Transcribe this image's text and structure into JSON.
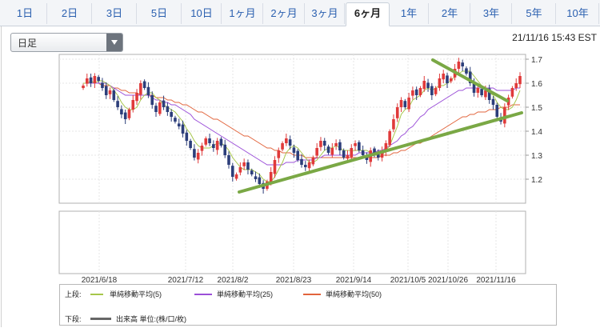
{
  "tabs": {
    "items": [
      "1日",
      "2日",
      "3日",
      "5日",
      "10日",
      "1ヶ月",
      "2ヶ月",
      "3ヶ月",
      "6ヶ月",
      "1年",
      "2年",
      "3年",
      "5年",
      "10年"
    ],
    "active_index": 8
  },
  "controls": {
    "period_select": "日足",
    "timestamp": "21/11/16 15:43 EST"
  },
  "chart_data": {
    "type": "candlestick",
    "x_tick_labels": [
      "2021/6/18",
      "2021/7/12",
      "2021/8/2",
      "2021/8/23",
      "2021/9/14",
      "2021/10/5",
      "2021/10/26",
      "2021/11/16"
    ],
    "y_tick_labels": [
      "1.7",
      "1.6",
      "1.5",
      "1.4",
      "1.3",
      "1.2"
    ],
    "ylim": [
      1.1,
      1.72
    ],
    "legend": {
      "upper_label": "上段:",
      "lower_label": "下段:",
      "ma5": "単純移動平均(5)",
      "ma25": "単純移動平均(25)",
      "ma50": "単純移動平均(50)",
      "volume": "出来高 単位:(株/口/枚)"
    },
    "colors": {
      "up": "#e03a3a",
      "down": "#2c3e7a",
      "ma5": "#a6c64a",
      "ma25": "#9b4fd8",
      "ma50": "#e2643c",
      "trend": "#7aa845"
    },
    "closes": [
      1.59,
      1.62,
      1.6,
      1.63,
      1.61,
      1.58,
      1.55,
      1.57,
      1.53,
      1.5,
      1.47,
      1.45,
      1.49,
      1.53,
      1.56,
      1.6,
      1.58,
      1.55,
      1.51,
      1.48,
      1.52,
      1.5,
      1.48,
      1.46,
      1.44,
      1.42,
      1.39,
      1.36,
      1.33,
      1.29,
      1.31,
      1.34,
      1.37,
      1.35,
      1.33,
      1.36,
      1.34,
      1.3,
      1.26,
      1.21,
      1.22,
      1.25,
      1.27,
      1.24,
      1.22,
      1.2,
      1.18,
      1.16,
      1.19,
      1.23,
      1.28,
      1.32,
      1.35,
      1.37,
      1.34,
      1.31,
      1.28,
      1.26,
      1.25,
      1.27,
      1.29,
      1.33,
      1.36,
      1.34,
      1.31,
      1.33,
      1.35,
      1.32,
      1.29,
      1.3,
      1.33,
      1.35,
      1.32,
      1.3,
      1.28,
      1.32,
      1.3,
      1.29,
      1.32,
      1.35,
      1.4,
      1.45,
      1.5,
      1.53,
      1.5,
      1.54,
      1.57,
      1.55,
      1.58,
      1.61,
      1.58,
      1.55,
      1.58,
      1.62,
      1.64,
      1.6,
      1.62,
      1.66,
      1.69,
      1.67,
      1.64,
      1.6,
      1.56,
      1.58,
      1.55,
      1.57,
      1.53,
      1.51,
      1.46,
      1.44,
      1.5,
      1.54,
      1.58,
      1.6,
      1.63
    ],
    "ma5": [
      1.6,
      1.6,
      1.61,
      1.6,
      1.61,
      1.61,
      1.6,
      1.59,
      1.57,
      1.55,
      1.52,
      1.5,
      1.49,
      1.49,
      1.5,
      1.53,
      1.55,
      1.56,
      1.56,
      1.54,
      1.53,
      1.51,
      1.5,
      1.49,
      1.48,
      1.46,
      1.44,
      1.41,
      1.39,
      1.36,
      1.34,
      1.33,
      1.33,
      1.33,
      1.34,
      1.35,
      1.35,
      1.34,
      1.32,
      1.29,
      1.27,
      1.25,
      1.24,
      1.24,
      1.24,
      1.23,
      1.22,
      1.2,
      1.19,
      1.19,
      1.21,
      1.24,
      1.27,
      1.31,
      1.33,
      1.34,
      1.33,
      1.31,
      1.29,
      1.27,
      1.27,
      1.28,
      1.3,
      1.32,
      1.33,
      1.33,
      1.34,
      1.33,
      1.32,
      1.32,
      1.32,
      1.32,
      1.32,
      1.32,
      1.32,
      1.31,
      1.3,
      1.3,
      1.3,
      1.32,
      1.34,
      1.38,
      1.42,
      1.47,
      1.49,
      1.5,
      1.53,
      1.54,
      1.55,
      1.57,
      1.58,
      1.57,
      1.58,
      1.59,
      1.59,
      1.6,
      1.61,
      1.63,
      1.64,
      1.65,
      1.65,
      1.65,
      1.63,
      1.61,
      1.59,
      1.57,
      1.56,
      1.55,
      1.52,
      1.5,
      1.49,
      1.49,
      1.5,
      1.53,
      1.57
    ],
    "ma25": [
      1.6,
      1.6,
      1.6,
      1.6,
      1.6,
      1.6,
      1.6,
      1.59,
      1.58,
      1.57,
      1.56,
      1.55,
      1.55,
      1.55,
      1.55,
      1.55,
      1.55,
      1.55,
      1.54,
      1.53,
      1.53,
      1.52,
      1.52,
      1.51,
      1.51,
      1.5,
      1.49,
      1.48,
      1.47,
      1.45,
      1.44,
      1.43,
      1.42,
      1.41,
      1.4,
      1.39,
      1.38,
      1.37,
      1.36,
      1.35,
      1.34,
      1.33,
      1.32,
      1.31,
      1.3,
      1.29,
      1.28,
      1.27,
      1.26,
      1.26,
      1.26,
      1.26,
      1.26,
      1.27,
      1.27,
      1.27,
      1.28,
      1.28,
      1.28,
      1.28,
      1.28,
      1.29,
      1.29,
      1.3,
      1.3,
      1.3,
      1.3,
      1.3,
      1.3,
      1.3,
      1.3,
      1.3,
      1.31,
      1.31,
      1.31,
      1.31,
      1.31,
      1.32,
      1.32,
      1.33,
      1.34,
      1.35,
      1.36,
      1.38,
      1.39,
      1.41,
      1.42,
      1.44,
      1.46,
      1.47,
      1.49,
      1.5,
      1.51,
      1.52,
      1.53,
      1.54,
      1.55,
      1.56,
      1.57,
      1.57,
      1.58,
      1.58,
      1.58,
      1.58,
      1.58,
      1.58,
      1.58,
      1.58,
      1.57,
      1.57,
      1.57,
      1.57,
      1.57,
      1.58,
      1.58
    ],
    "ma50": [
      1.6,
      1.6,
      1.6,
      1.6,
      1.6,
      1.59,
      1.59,
      1.59,
      1.58,
      1.58,
      1.57,
      1.57,
      1.56,
      1.56,
      1.56,
      1.55,
      1.55,
      1.55,
      1.55,
      1.54,
      1.54,
      1.54,
      1.53,
      1.53,
      1.52,
      1.52,
      1.51,
      1.51,
      1.5,
      1.49,
      1.48,
      1.48,
      1.47,
      1.46,
      1.45,
      1.45,
      1.44,
      1.43,
      1.42,
      1.41,
      1.4,
      1.39,
      1.38,
      1.38,
      1.37,
      1.36,
      1.35,
      1.34,
      1.33,
      1.33,
      1.32,
      1.32,
      1.31,
      1.31,
      1.31,
      1.3,
      1.3,
      1.3,
      1.29,
      1.29,
      1.29,
      1.29,
      1.29,
      1.29,
      1.29,
      1.29,
      1.29,
      1.29,
      1.29,
      1.29,
      1.29,
      1.29,
      1.29,
      1.29,
      1.29,
      1.29,
      1.29,
      1.29,
      1.3,
      1.3,
      1.3,
      1.31,
      1.31,
      1.32,
      1.32,
      1.33,
      1.34,
      1.35,
      1.35,
      1.36,
      1.37,
      1.38,
      1.39,
      1.4,
      1.41,
      1.42,
      1.43,
      1.44,
      1.45,
      1.46,
      1.46,
      1.47,
      1.47,
      1.48,
      1.48,
      1.48,
      1.49,
      1.49,
      1.49,
      1.5,
      1.5,
      1.5,
      1.51,
      1.51,
      1.51
    ]
  }
}
